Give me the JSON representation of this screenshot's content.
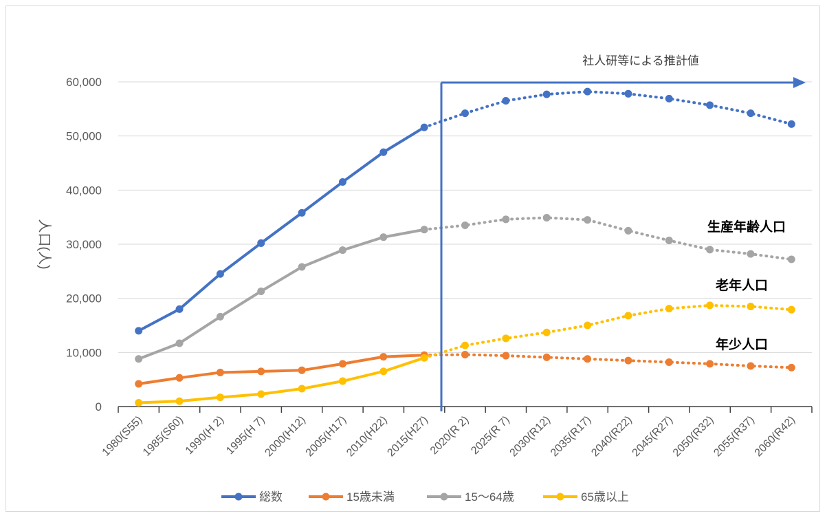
{
  "chart_data": {
    "type": "line",
    "categories": [
      "1980(S55)",
      "1985(S60)",
      "1990(H 2)",
      "1995(H 7)",
      "2000(H12)",
      "2005(H17)",
      "2010(H22)",
      "2015(H27)",
      "2020(R 2)",
      "2025(R 7)",
      "2030(R12)",
      "2035(R17)",
      "2040(R22)",
      "2045(R27)",
      "2050(R32)",
      "2055(R37)",
      "2060(R42)"
    ],
    "actual_until_index": 7,
    "ylabel": "人口(人)",
    "ylim": [
      0,
      60000
    ],
    "yticks": [
      0,
      10000,
      20000,
      30000,
      40000,
      50000,
      60000
    ],
    "ytick_labels": [
      "0",
      "10,000",
      "20,000",
      "30,000",
      "40,000",
      "50,000",
      "60,000"
    ],
    "grid": true,
    "legend_position": "bottom",
    "annotation": "社人研等による推計値",
    "series": [
      {
        "name": "総数",
        "color": "#4472C4",
        "values": [
          14000,
          18000,
          24500,
          30200,
          35800,
          41500,
          47000,
          51600,
          54200,
          56500,
          57700,
          58200,
          57800,
          56900,
          55700,
          54200,
          52200
        ]
      },
      {
        "name": "15歳未満",
        "color": "#ED7D31",
        "values": [
          4200,
          5300,
          6300,
          6500,
          6700,
          7900,
          9200,
          9500,
          9600,
          9400,
          9100,
          8800,
          8500,
          8200,
          7900,
          7500,
          7200
        ]
      },
      {
        "name": "15～64歳",
        "color": "#A5A5A5",
        "values": [
          8800,
          11700,
          16600,
          21300,
          25800,
          28900,
          31300,
          32700,
          33500,
          34600,
          34900,
          34500,
          32500,
          30700,
          29000,
          28200,
          27200
        ]
      },
      {
        "name": "65歳以上",
        "color": "#FFC000",
        "values": [
          700,
          1000,
          1700,
          2300,
          3300,
          4700,
          6500,
          9000,
          11300,
          12600,
          13700,
          15000,
          16800,
          18100,
          18700,
          18500,
          17900
        ]
      }
    ],
    "series_labels": [
      "生産年齢人口",
      "老年人口",
      "年少人口"
    ]
  }
}
